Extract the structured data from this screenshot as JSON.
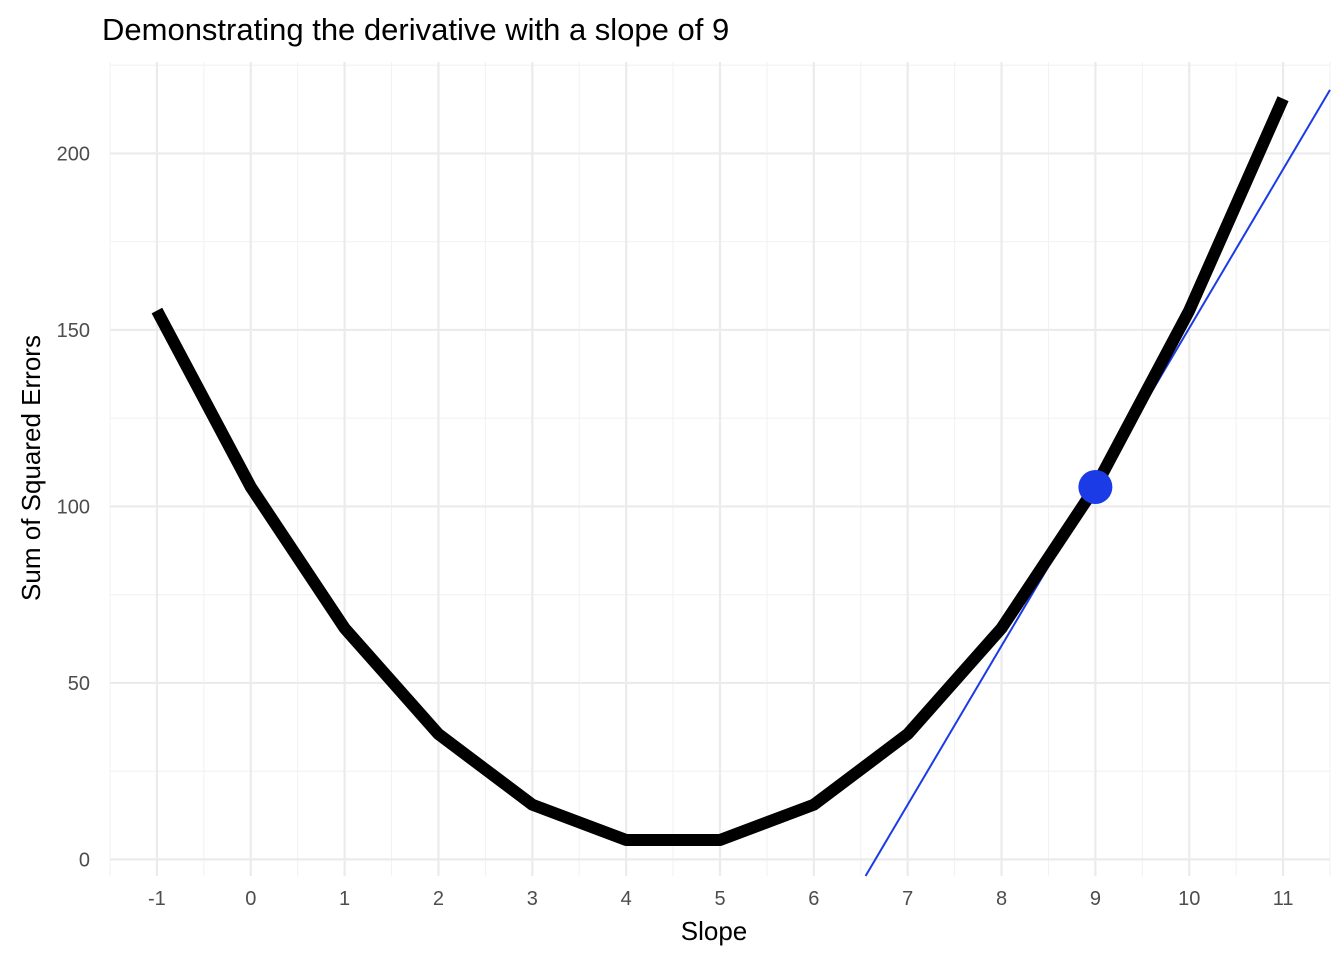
{
  "chart_data": {
    "type": "line",
    "title": "Demonstrating the derivative with a slope of 9",
    "xlabel": "Slope",
    "ylabel": "Sum of Squared Errors",
    "x_ticks": [
      "-1",
      "0",
      "1",
      "2",
      "3",
      "4",
      "5",
      "6",
      "7",
      "8",
      "9",
      "10",
      "11"
    ],
    "y_ticks": [
      "0",
      "50",
      "100",
      "150",
      "200"
    ],
    "xlim": [
      -1.5,
      11.5
    ],
    "ylim": [
      -4.7,
      225.9
    ],
    "grid": true,
    "series": [
      {
        "color": "#000000",
        "x": [
          -1,
          0,
          1,
          2,
          3,
          4,
          5,
          6,
          7,
          8,
          9,
          10,
          11
        ],
        "y": [
          155.5,
          105.5,
          65.5,
          35.5,
          15.5,
          5.5,
          5.5,
          15.5,
          35.5,
          65.5,
          105.5,
          155.5,
          215.5
        ]
      }
    ],
    "highlight_point": {
      "x": 9,
      "y": 105.5,
      "color": "#1a3be6"
    },
    "tangent_line": {
      "slope": 45,
      "through": {
        "x": 9,
        "y": 105.5
      },
      "color": "#1a3be6"
    }
  }
}
